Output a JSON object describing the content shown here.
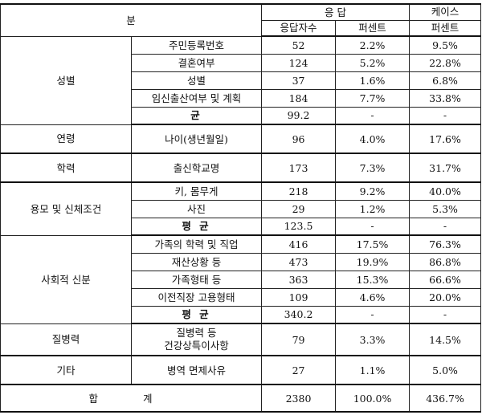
{
  "header": {
    "category": "분",
    "response": "응 답",
    "count": "응답자수",
    "percent": "퍼센트",
    "case_percent_1": "케이스",
    "case_percent_2": "퍼센트"
  },
  "groups": {
    "g1": {
      "name": "성별",
      "items": [
        {
          "label": "주민등록번호",
          "count": "52",
          "percent": "2.2%",
          "case": "9.5%"
        },
        {
          "label": "결혼여부",
          "count": "124",
          "percent": "5.2%",
          "case": "22.8%"
        },
        {
          "label": "성별",
          "count": "37",
          "percent": "1.6%",
          "case": "6.8%"
        },
        {
          "label": "임신출산여부 및  계획",
          "count": "184",
          "percent": "7.7%",
          "case": "33.8%"
        }
      ],
      "avg": {
        "label": "균",
        "count": "99.2",
        "percent": "-",
        "case": "-"
      }
    },
    "g2": {
      "name": "연령",
      "items": [
        {
          "label": "나이(생년월일)",
          "count": "96",
          "percent": "4.0%",
          "case": "17.6%"
        }
      ]
    },
    "g3": {
      "name": "학력",
      "items": [
        {
          "label": "출신학교명",
          "count": "173",
          "percent": "7.3%",
          "case": "31.7%"
        }
      ]
    },
    "g4": {
      "name": "용모 및 신체조건",
      "items": [
        {
          "label": "키, 몸무게",
          "count": "218",
          "percent": "9.2%",
          "case": "40.0%"
        },
        {
          "label": "사진",
          "count": "29",
          "percent": "1.2%",
          "case": "5.3%"
        }
      ],
      "avg": {
        "label": "평 균",
        "count": "123.5",
        "percent": "-",
        "case": "-"
      }
    },
    "g5": {
      "name": "사회적 신분",
      "items": [
        {
          "label": "가족의 학력 및  직업",
          "count": "416",
          "percent": "17.5%",
          "case": "76.3%"
        },
        {
          "label": "재산상황 등",
          "count": "473",
          "percent": "19.9%",
          "case": "86.8%"
        },
        {
          "label": "가족형태 등",
          "count": "363",
          "percent": "15.3%",
          "case": "66.6%"
        },
        {
          "label": "이전직장 고용형태",
          "count": "109",
          "percent": "4.6%",
          "case": "20.0%"
        }
      ],
      "avg": {
        "label": "평 균",
        "count": "340.2",
        "percent": "-",
        "case": "-"
      }
    },
    "g6": {
      "name": "질병력",
      "items": [
        {
          "label_1": "질병력 등",
          "label_2": "건강상특이사항",
          "count": "79",
          "percent": "3.3%",
          "case": "14.5%"
        }
      ]
    },
    "g7": {
      "name": "기타",
      "items": [
        {
          "label": "병역 면제사유",
          "count": "27",
          "percent": "1.1%",
          "case": "5.0%"
        }
      ]
    }
  },
  "total": {
    "label": "합 계",
    "count": "2380",
    "percent": "100.0%",
    "case": "436.7%"
  }
}
